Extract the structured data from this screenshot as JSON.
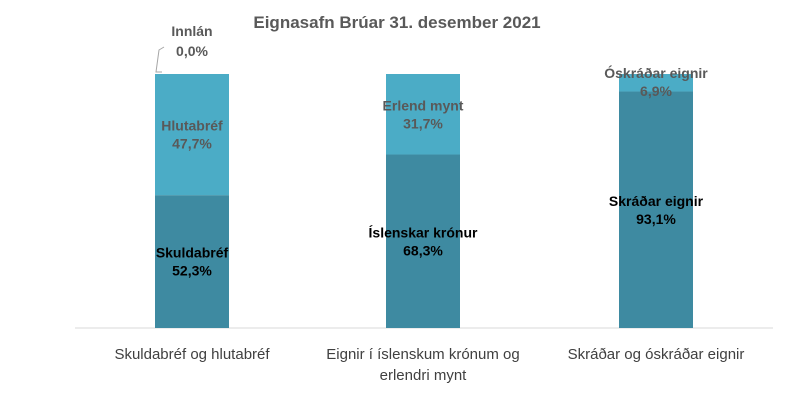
{
  "chart_data": {
    "type": "bar",
    "stacked": true,
    "percent": true,
    "title": "Eignasafn Brúar 31. desember 2021",
    "ylim": [
      0,
      100
    ],
    "grid": false,
    "legend": "none",
    "bars": [
      {
        "category": [
          "Skuldabréf og hlutabréf"
        ],
        "segments": [
          {
            "name": "Skuldabréf",
            "value": 52.3,
            "label": "52,3%",
            "color": "#3E8AA1",
            "text_color": "#000000"
          },
          {
            "name": "Hlutabréf",
            "value": 47.7,
            "label": "47,7%",
            "color": "#4BACC6",
            "text_color": "#595959"
          },
          {
            "name": "Innlán",
            "value": 0.0,
            "label": "0,0%",
            "color": "#4BACC6",
            "text_color": "#595959",
            "callout": true
          }
        ]
      },
      {
        "category": [
          "Eignir í íslenskum krónum og",
          "erlendri mynt"
        ],
        "segments": [
          {
            "name": "Íslenskar krónur",
            "value": 68.3,
            "label": "68,3%",
            "color": "#3E8AA1",
            "text_color": "#000000"
          },
          {
            "name": "Erlend mynt",
            "value": 31.7,
            "label": "31,7%",
            "color": "#4BACC6",
            "text_color": "#595959"
          }
        ]
      },
      {
        "category": [
          "Skráðar og óskráðar eignir"
        ],
        "segments": [
          {
            "name": "Skráðar eignir",
            "value": 93.1,
            "label": "93,1%",
            "color": "#3E8AA1",
            "text_color": "#000000"
          },
          {
            "name": "Óskráðar eignir",
            "value": 6.9,
            "label": "6,9%",
            "color": "#4BACC6",
            "text_color": "#595959"
          }
        ]
      }
    ]
  }
}
